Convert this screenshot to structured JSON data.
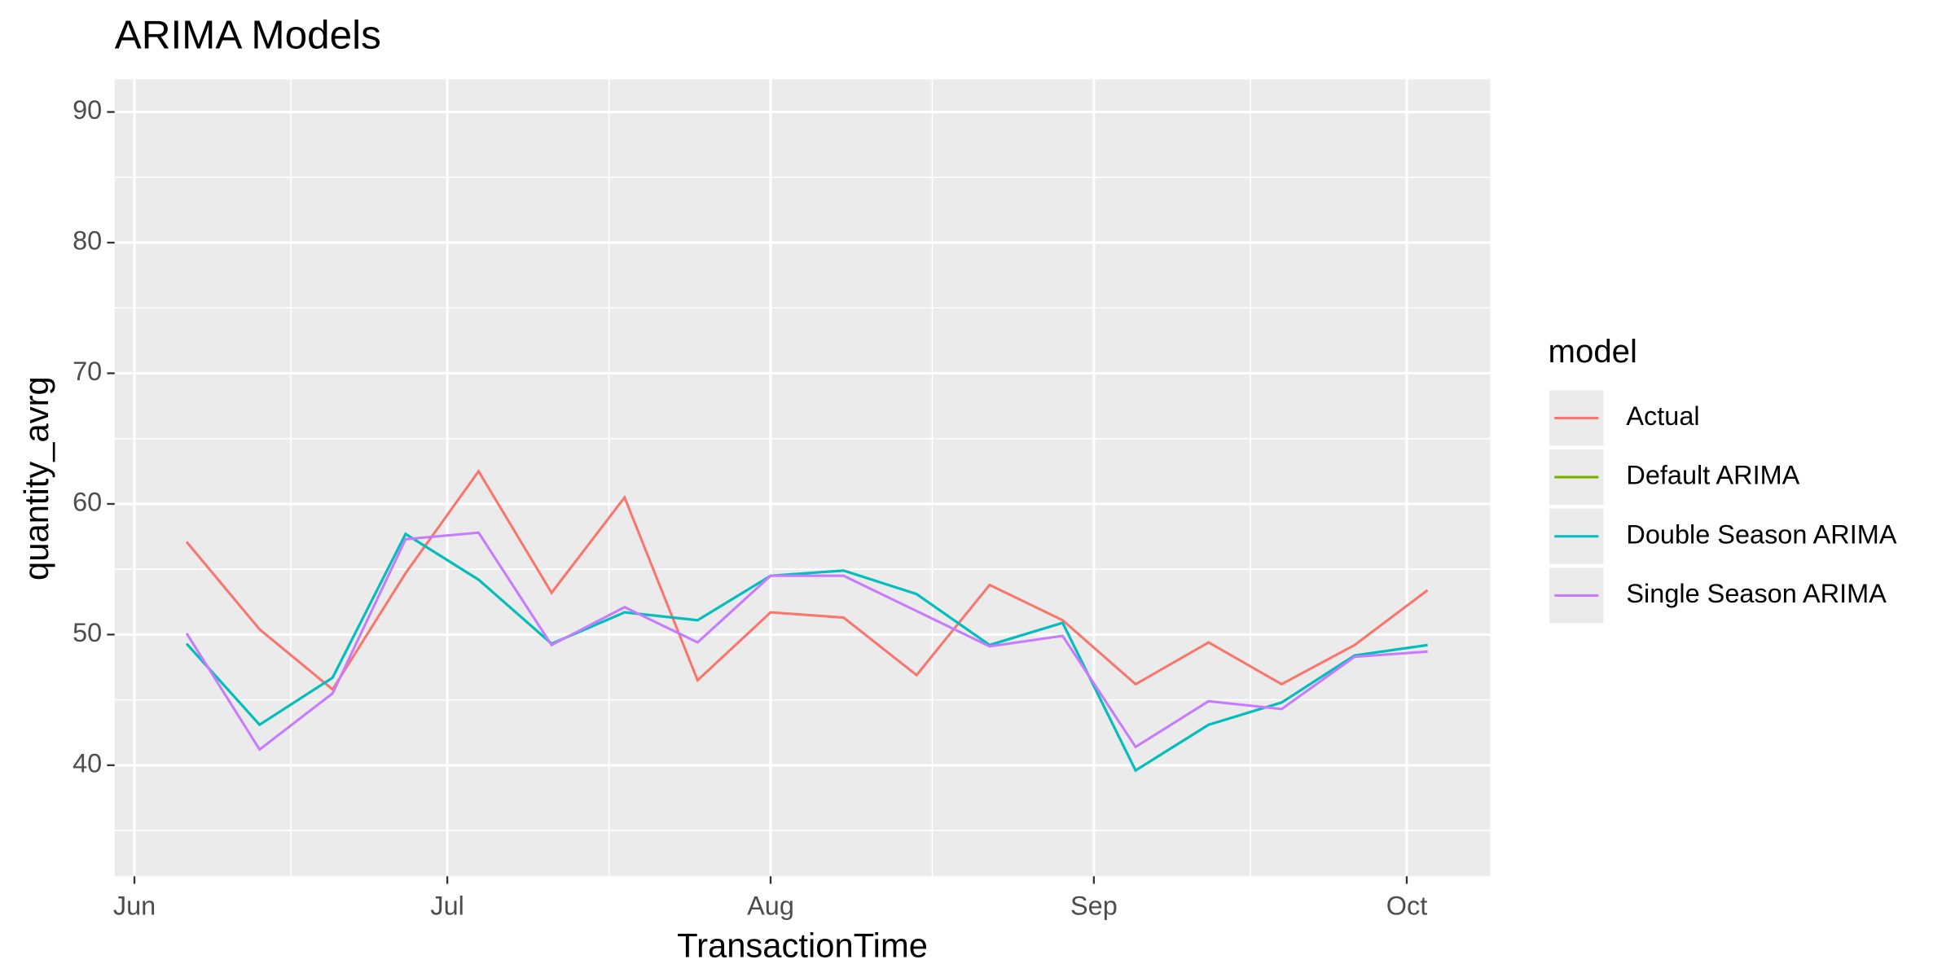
{
  "chart_data": {
    "type": "line",
    "title": "ARIMA Models",
    "x_label": "TransactionTime",
    "y_label": "quantity_avrg",
    "legend_title": "model",
    "legend_position": "right",
    "grid": true,
    "x": [
      5,
      12,
      19,
      26,
      33,
      40,
      47,
      54,
      61,
      68,
      75,
      82,
      89,
      96,
      103,
      110,
      117,
      124
    ],
    "xlim": [
      -1.9,
      130
    ],
    "xticks": [
      {
        "value": 0,
        "label": "Jun"
      },
      {
        "value": 30,
        "label": "Jul"
      },
      {
        "value": 61,
        "label": "Aug"
      },
      {
        "value": 92,
        "label": "Sep"
      },
      {
        "value": 122,
        "label": "Oct"
      }
    ],
    "ylim": [
      31.5,
      92.5
    ],
    "yticks": [
      40,
      50,
      60,
      70,
      80,
      90
    ],
    "series": [
      {
        "name": "Actual",
        "color": "#F8766D",
        "values": [
          57.1,
          50.4,
          45.8,
          54.7,
          62.5,
          53.2,
          60.5,
          46.5,
          51.7,
          51.3,
          46.9,
          53.8,
          51.1,
          46.2,
          49.4,
          46.2,
          49.2,
          53.4
        ]
      },
      {
        "name": "Default ARIMA",
        "color": "#7CAE00",
        "values": [
          49.3,
          43.1,
          46.7,
          57.7,
          54.2,
          49.3,
          51.7,
          51.1,
          54.5,
          54.9,
          53.1,
          49.2,
          50.9,
          39.6,
          43.1,
          44.8,
          48.4,
          49.2
        ]
      },
      {
        "name": "Double Season ARIMA",
        "color": "#00BFC4",
        "values": [
          49.3,
          43.1,
          46.7,
          57.7,
          54.2,
          49.3,
          51.7,
          51.1,
          54.5,
          54.9,
          53.1,
          49.2,
          50.9,
          39.6,
          43.1,
          44.8,
          48.4,
          49.2
        ]
      },
      {
        "name": "Single Season ARIMA",
        "color": "#C77CFF",
        "values": [
          50.1,
          41.2,
          45.5,
          57.3,
          57.8,
          49.2,
          52.1,
          49.4,
          54.5,
          54.5,
          51.8,
          49.1,
          49.9,
          41.4,
          44.9,
          44.3,
          48.3,
          48.7
        ]
      }
    ]
  }
}
